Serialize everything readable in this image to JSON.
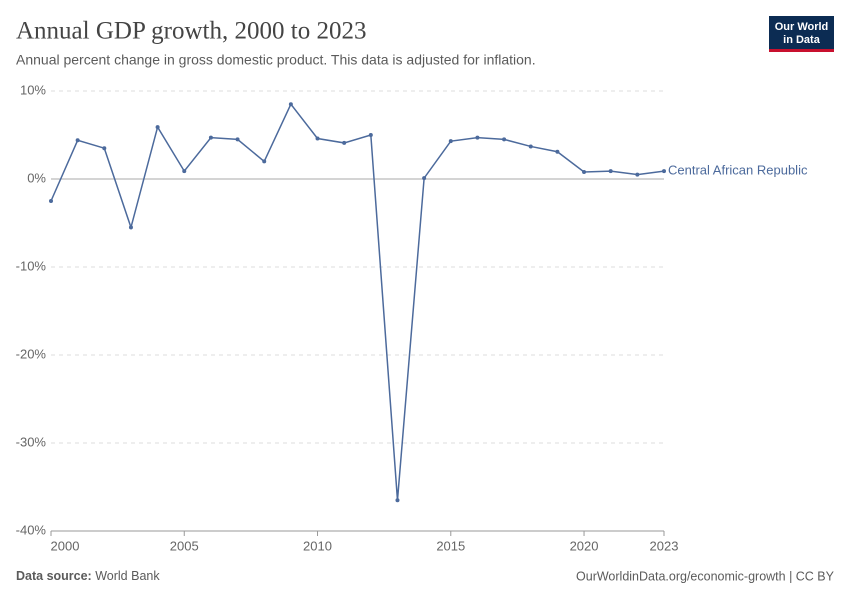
{
  "chart_data": {
    "type": "line",
    "title": "Annual GDP growth, 2000 to 2023",
    "subtitle": "Annual percent change in gross domestic product. This data is adjusted for inflation.",
    "x": [
      2000,
      2001,
      2002,
      2003,
      2004,
      2005,
      2006,
      2007,
      2008,
      2009,
      2010,
      2011,
      2012,
      2013,
      2014,
      2015,
      2016,
      2017,
      2018,
      2019,
      2020,
      2021,
      2022,
      2023
    ],
    "series": [
      {
        "name": "Central African Republic",
        "color": "#4c6a9c",
        "values": [
          -2.5,
          4.4,
          3.5,
          -5.5,
          5.9,
          0.9,
          4.7,
          4.5,
          2.0,
          8.5,
          4.6,
          4.1,
          5.0,
          -36.5,
          0.1,
          4.3,
          4.7,
          4.5,
          3.7,
          3.1,
          0.8,
          0.9,
          0.5,
          0.9
        ]
      }
    ],
    "xlim": [
      2000,
      2023
    ],
    "xticks": [
      2000,
      2005,
      2010,
      2015,
      2020,
      2023
    ],
    "ylim": [
      -40,
      10
    ],
    "yticks": [
      {
        "value": -40,
        "label": "-40%"
      },
      {
        "value": -30,
        "label": "-30%"
      },
      {
        "value": -20,
        "label": "-20%"
      },
      {
        "value": -10,
        "label": "-10%"
      },
      {
        "value": 0,
        "label": "0%"
      },
      {
        "value": 10,
        "label": "10%"
      }
    ],
    "grid": true,
    "source_label": "Data source:",
    "source": "World Bank",
    "footer_right": "OurWorldinData.org/economic-growth | CC BY",
    "logo": [
      "Our World",
      "in Data"
    ]
  }
}
